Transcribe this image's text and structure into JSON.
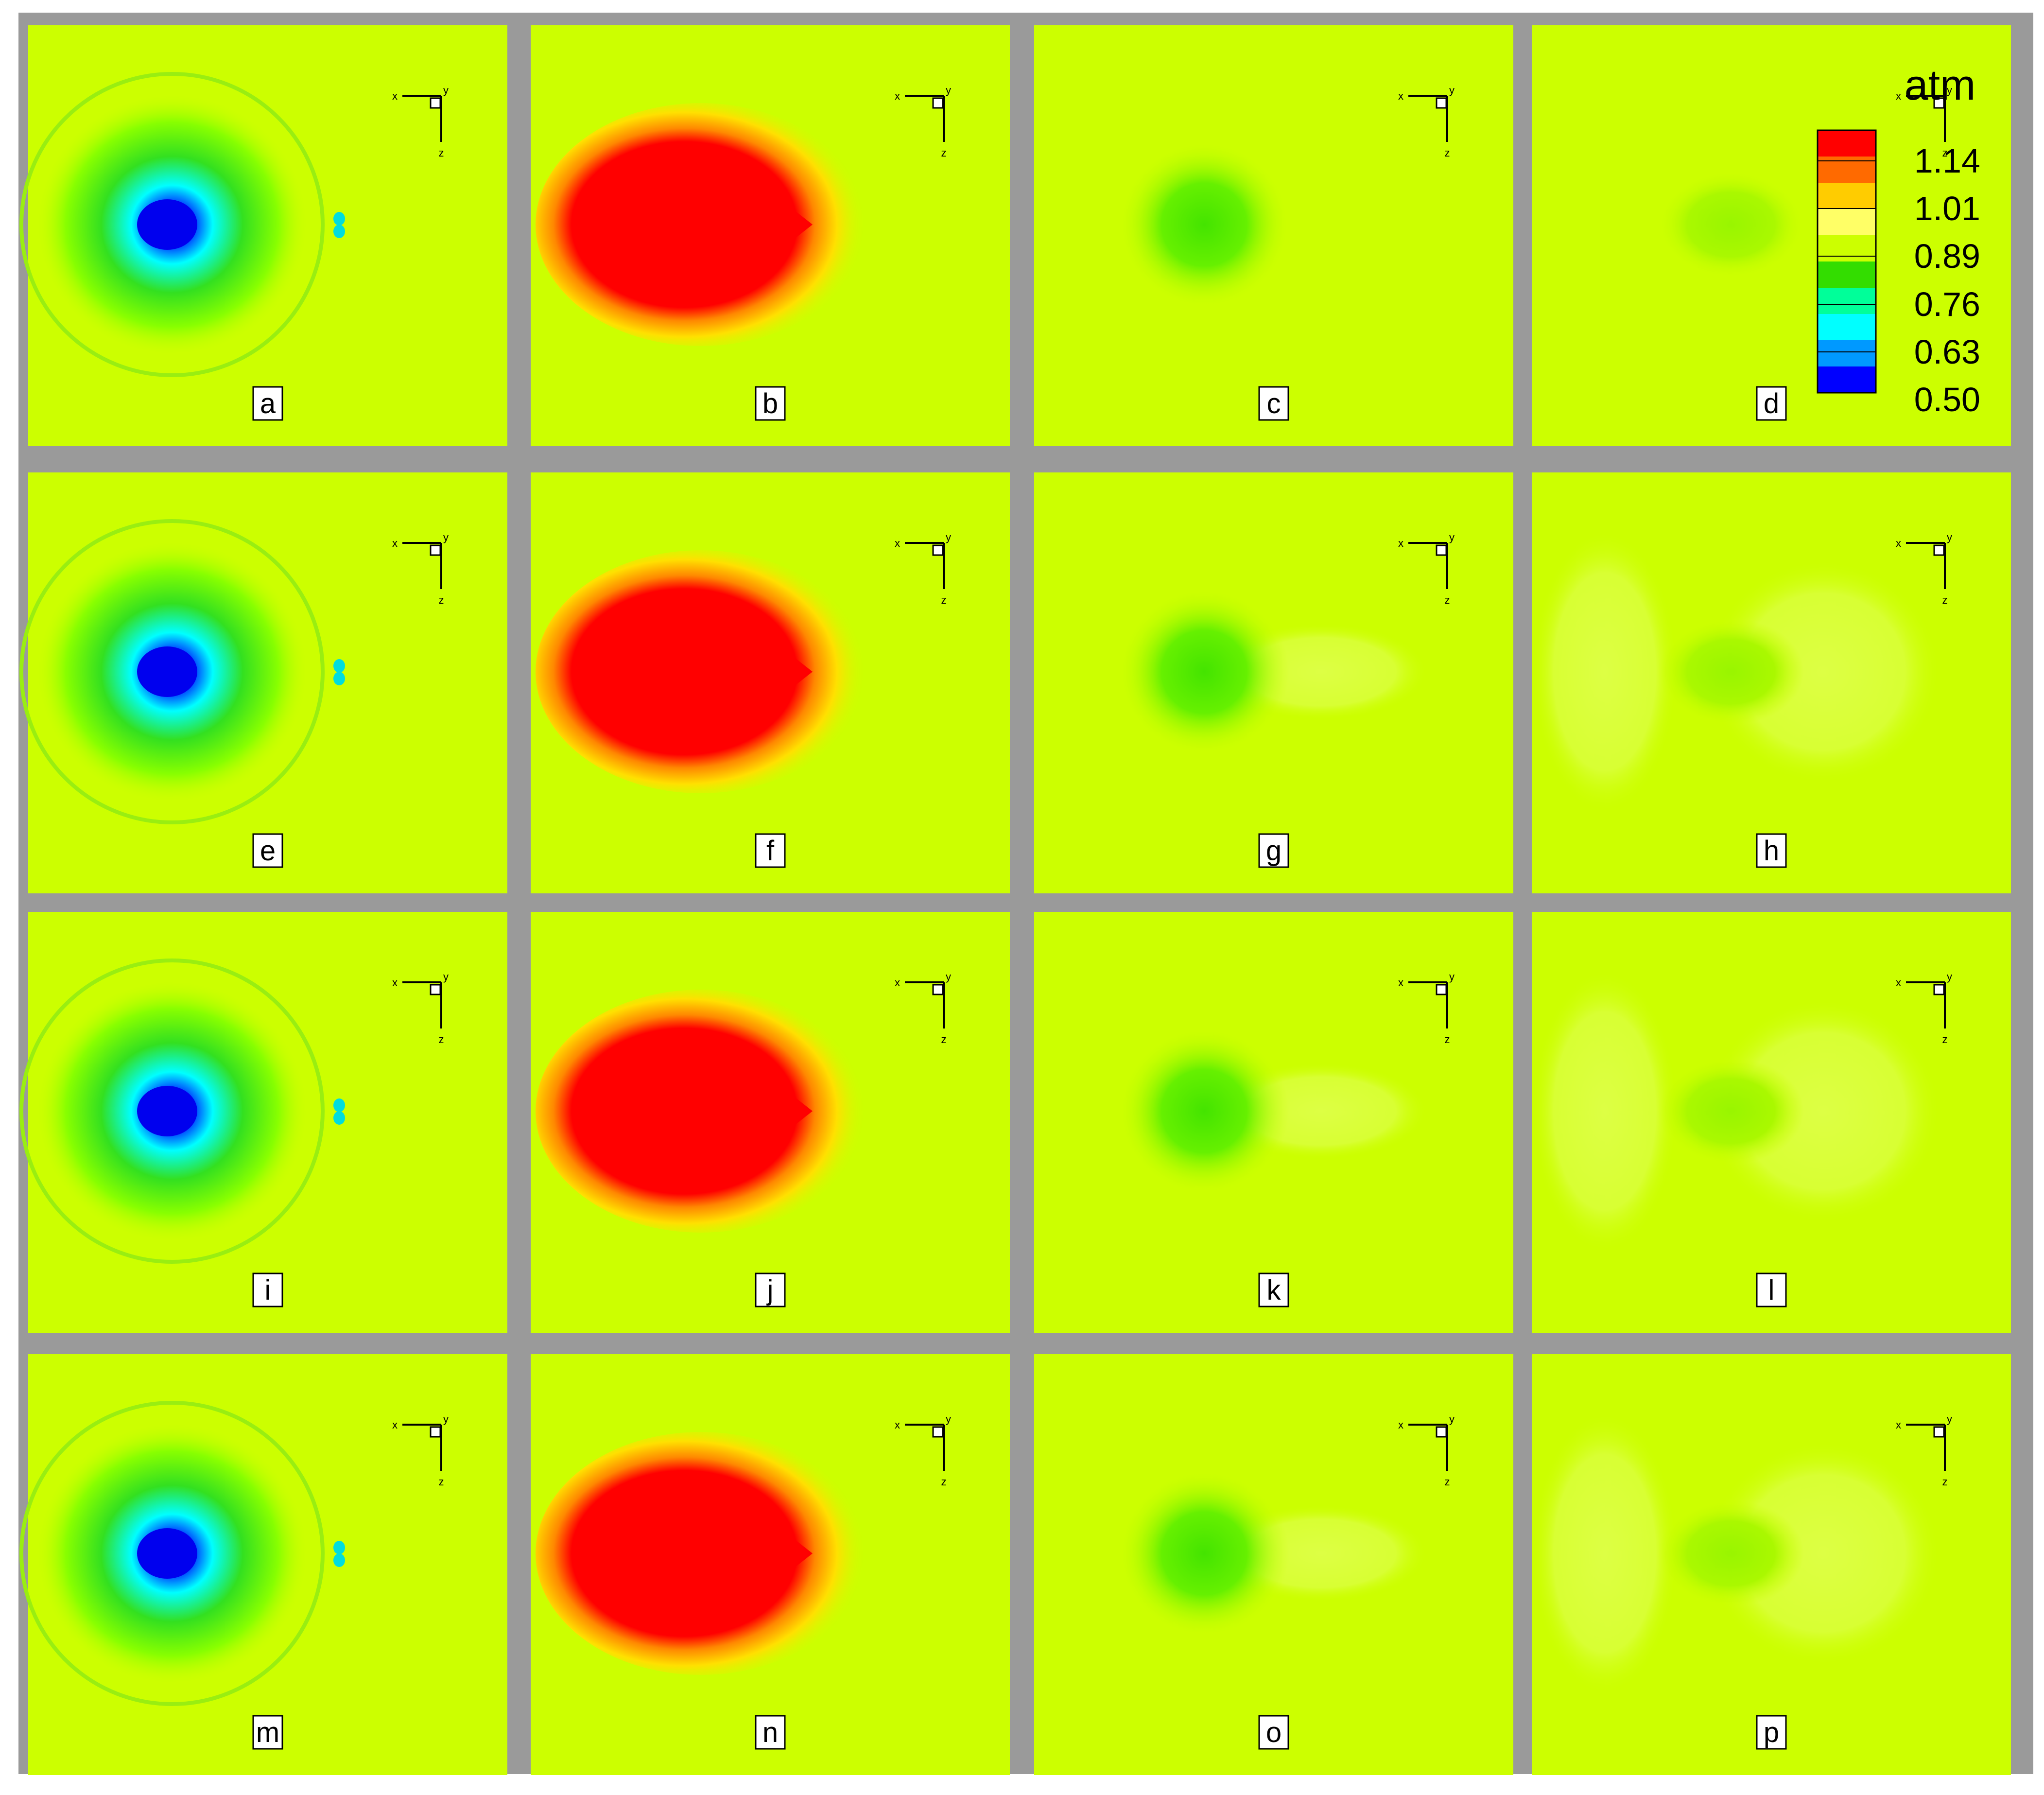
{
  "figure": {
    "background_color": "#9a9a9a",
    "field_color": "#ccff00"
  },
  "panels": [
    {
      "label": "a",
      "type": "low"
    },
    {
      "label": "b",
      "type": "high"
    },
    {
      "label": "c",
      "type": "mild"
    },
    {
      "label": "d",
      "type": "faint"
    },
    {
      "label": "e",
      "type": "low"
    },
    {
      "label": "f",
      "type": "high"
    },
    {
      "label": "g",
      "type": "mild"
    },
    {
      "label": "h",
      "type": "faint"
    },
    {
      "label": "i",
      "type": "low"
    },
    {
      "label": "j",
      "type": "high"
    },
    {
      "label": "k",
      "type": "mild"
    },
    {
      "label": "l",
      "type": "faint"
    },
    {
      "label": "m",
      "type": "low"
    },
    {
      "label": "n",
      "type": "high"
    },
    {
      "label": "o",
      "type": "mild"
    },
    {
      "label": "p",
      "type": "faint"
    }
  ],
  "axes_triad": {
    "x_label": "x",
    "y_label": "y",
    "z_label": "z"
  },
  "colorbar": {
    "unit": "atm",
    "tick_labels": [
      "1.14",
      "1.01",
      "0.89",
      "0.76",
      "0.63",
      "0.50"
    ],
    "colors_top_to_bottom": [
      "#ff0000",
      "#ff6a00",
      "#ffcc00",
      "#ffff66",
      "#ccff00",
      "#33dd00",
      "#00ff99",
      "#00ffff",
      "#0099ff",
      "#0000ff"
    ]
  }
}
